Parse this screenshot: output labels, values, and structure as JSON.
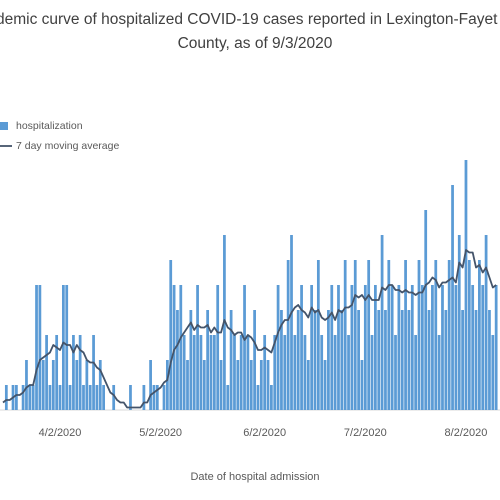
{
  "chart_data": {
    "type": "bar",
    "title": [
      "demic curve of hospitalized COVID-19 cases reported in Lexington-Fayet",
      "County, as of 9/3/2020"
    ],
    "x_label": "Date of hospital admission",
    "legend": "top-left",
    "categories": [
      null,
      null,
      null,
      null,
      null,
      null,
      null,
      null,
      null,
      null,
      null,
      null,
      null,
      null,
      null,
      null,
      null,
      "4/2/2020",
      null,
      null,
      null,
      null,
      null,
      null,
      null,
      null,
      null,
      null,
      null,
      null,
      null,
      null,
      null,
      null,
      null,
      null,
      null,
      null,
      null,
      null,
      null,
      null,
      null,
      null,
      null,
      null,
      null,
      "5/2/2020",
      null,
      null,
      null,
      null,
      null,
      null,
      null,
      null,
      null,
      null,
      null,
      null,
      null,
      null,
      null,
      null,
      null,
      null,
      null,
      null,
      null,
      null,
      null,
      null,
      null,
      null,
      null,
      null,
      null,
      null,
      "6/2/2020",
      null,
      null,
      null,
      null,
      null,
      null,
      null,
      null,
      null,
      null,
      null,
      null,
      null,
      null,
      null,
      null,
      null,
      null,
      null,
      null,
      null,
      null,
      null,
      null,
      null,
      null,
      null,
      null,
      null,
      "7/2/2020",
      null,
      null,
      null,
      null,
      null,
      null,
      null,
      null,
      null,
      null,
      null,
      null,
      null,
      null,
      null,
      null,
      null,
      null,
      null,
      null,
      null,
      null,
      null,
      null,
      null,
      null,
      null,
      null,
      null,
      "8/2/2020",
      null,
      null,
      null,
      null,
      null,
      null,
      null,
      null,
      null
    ],
    "series": [
      {
        "name": "hospitalization",
        "type": "bar",
        "color": "#5b9bd5",
        "values": [
          0,
          1,
          0,
          1,
          1,
          0,
          1,
          2,
          1,
          1,
          5,
          5,
          2,
          3,
          1,
          2,
          3,
          1,
          5,
          5,
          1,
          3,
          2,
          3,
          1,
          2,
          1,
          3,
          1,
          2,
          1,
          0,
          0,
          1,
          0,
          0,
          0,
          0,
          1,
          0,
          0,
          0,
          1,
          0,
          2,
          1,
          1,
          0,
          1,
          2,
          6,
          5,
          4,
          5,
          3,
          2,
          4,
          3,
          5,
          3,
          2,
          4,
          3,
          3,
          5,
          2,
          7,
          1,
          4,
          3,
          2,
          3,
          5,
          3,
          2,
          4,
          1,
          2,
          3,
          2,
          1,
          3,
          5,
          4,
          3,
          6,
          7,
          3,
          4,
          5,
          3,
          2,
          5,
          4,
          6,
          3,
          2,
          4,
          5,
          3,
          5,
          4,
          6,
          3,
          5,
          6,
          4,
          2,
          5,
          6,
          3,
          5,
          4,
          7,
          4,
          6,
          5,
          3,
          5,
          4,
          6,
          4,
          5,
          3,
          6,
          5,
          8,
          4,
          5,
          6,
          3,
          5,
          4,
          6,
          9,
          5,
          7,
          4,
          10,
          6,
          5,
          4,
          6,
          5,
          7,
          4,
          3,
          5
        ]
      },
      {
        "name": "7 day moving average",
        "type": "line",
        "color": "#44546a",
        "values": [
          0.3,
          0.4,
          0.4,
          0.5,
          0.6,
          0.6,
          0.7,
          0.9,
          1.0,
          1.0,
          1.6,
          2.0,
          2.1,
          2.2,
          2.3,
          2.6,
          2.5,
          2.4,
          2.7,
          2.6,
          2.6,
          2.3,
          2.6,
          2.4,
          2.3,
          2.0,
          1.9,
          1.9,
          1.7,
          1.6,
          1.3,
          1.0,
          0.7,
          0.6,
          0.4,
          0.3,
          0.3,
          0.1,
          0.1,
          0.1,
          0.1,
          0.1,
          0.3,
          0.3,
          0.6,
          0.7,
          0.8,
          0.9,
          1.1,
          1.2,
          1.9,
          2.4,
          2.6,
          2.9,
          3.1,
          3.3,
          3.5,
          3.2,
          3.4,
          3.3,
          3.3,
          3.4,
          3.1,
          3.3,
          3.1,
          3.1,
          3.6,
          3.3,
          3.2,
          3.0,
          3.1,
          3.1,
          2.8,
          3.0,
          2.9,
          2.7,
          2.4,
          2.4,
          2.5,
          2.4,
          2.3,
          2.7,
          3.1,
          3.4,
          3.6,
          3.6,
          3.9,
          4.1,
          4.2,
          4.0,
          3.9,
          3.7,
          4.1,
          3.9,
          4.0,
          3.7,
          3.6,
          3.7,
          3.9,
          3.6,
          4.0,
          3.9,
          4.1,
          4.1,
          4.2,
          4.6,
          4.5,
          4.6,
          4.4,
          4.6,
          4.4,
          4.4,
          4.4,
          4.9,
          4.8,
          5.0,
          5.0,
          4.8,
          4.8,
          4.7,
          4.8,
          4.7,
          4.7,
          4.6,
          4.7,
          4.7,
          5.0,
          5.1,
          5.3,
          5.2,
          4.9,
          5.1,
          5.1,
          5.2,
          5.3,
          5.1,
          5.9,
          5.7,
          6.4,
          6.3,
          6.3,
          5.7,
          5.8,
          5.5,
          5.7,
          5.3,
          4.9,
          5.0
        ]
      }
    ]
  }
}
